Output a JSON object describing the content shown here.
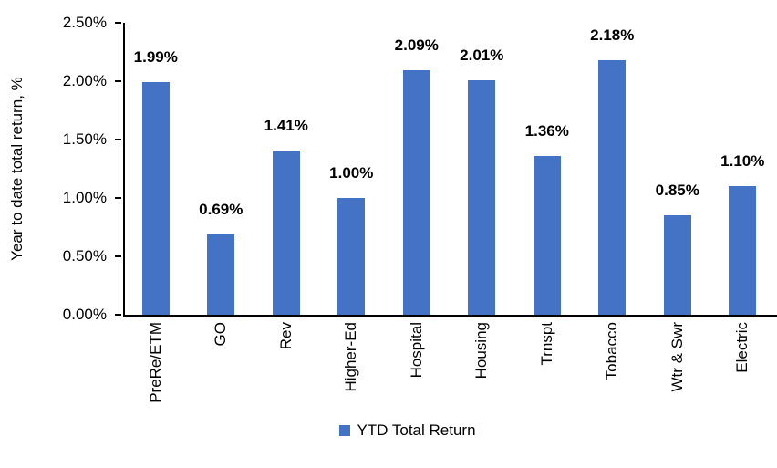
{
  "chart_data": {
    "type": "bar",
    "title": "",
    "categories": [
      "PreRe/ETM",
      "GO",
      "Rev",
      "Higher-Ed",
      "Hospital",
      "Housing",
      "Trnspt",
      "Tobacco",
      "Wtr & Swr",
      "Electric"
    ],
    "values": [
      1.99,
      0.69,
      1.41,
      1.0,
      2.09,
      2.01,
      1.36,
      2.18,
      0.85,
      1.1
    ],
    "value_labels": [
      "1.99%",
      "0.69%",
      "1.41%",
      "1.00%",
      "2.09%",
      "2.01%",
      "1.36%",
      "2.18%",
      "0.85%",
      "1.10%"
    ],
    "xlabel": "",
    "ylabel": "Year to date total return, %",
    "ylim": [
      0,
      2.5
    ],
    "yticks": [
      0,
      0.5,
      1.0,
      1.5,
      2.0,
      2.5
    ],
    "ytick_labels": [
      "0.00%",
      "0.50%",
      "1.00%",
      "1.50%",
      "2.00%",
      "2.50%"
    ],
    "legend": "YTD Total Return",
    "legend_position": "bottom",
    "grid": false,
    "bar_color": "#4472C4",
    "axis_color": "#000000",
    "text_color": "#000000"
  }
}
